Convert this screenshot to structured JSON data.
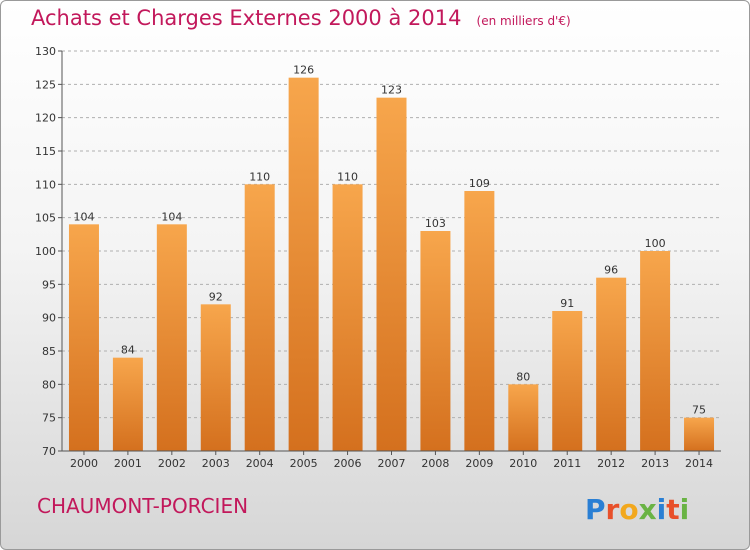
{
  "header": {
    "title": "Achats et Charges Externes 2000 à 2014",
    "subtitle": "(en milliers d'€)"
  },
  "footer": {
    "commune": "CHAUMONT-PORCIEN",
    "logo_text": "Proxiti"
  },
  "colors": {
    "title": "#c2185b",
    "bar_top": "#f7a64c",
    "bar_bottom": "#d4701e",
    "axis": "#555555",
    "grid": "#b0b0b0"
  },
  "chart_data": {
    "type": "bar",
    "title": "Achats et Charges Externes 2000 à 2014",
    "categories": [
      "2000",
      "2001",
      "2002",
      "2003",
      "2004",
      "2005",
      "2006",
      "2007",
      "2008",
      "2009",
      "2010",
      "2011",
      "2012",
      "2013",
      "2014"
    ],
    "values": [
      104,
      84,
      104,
      92,
      110,
      126,
      110,
      123,
      103,
      109,
      80,
      91,
      96,
      100,
      75
    ],
    "ylim": [
      70,
      130
    ],
    "yticks": [
      70,
      75,
      80,
      85,
      90,
      95,
      100,
      105,
      110,
      115,
      120,
      125,
      130
    ],
    "grid": true,
    "xlabel": "",
    "ylabel": ""
  }
}
